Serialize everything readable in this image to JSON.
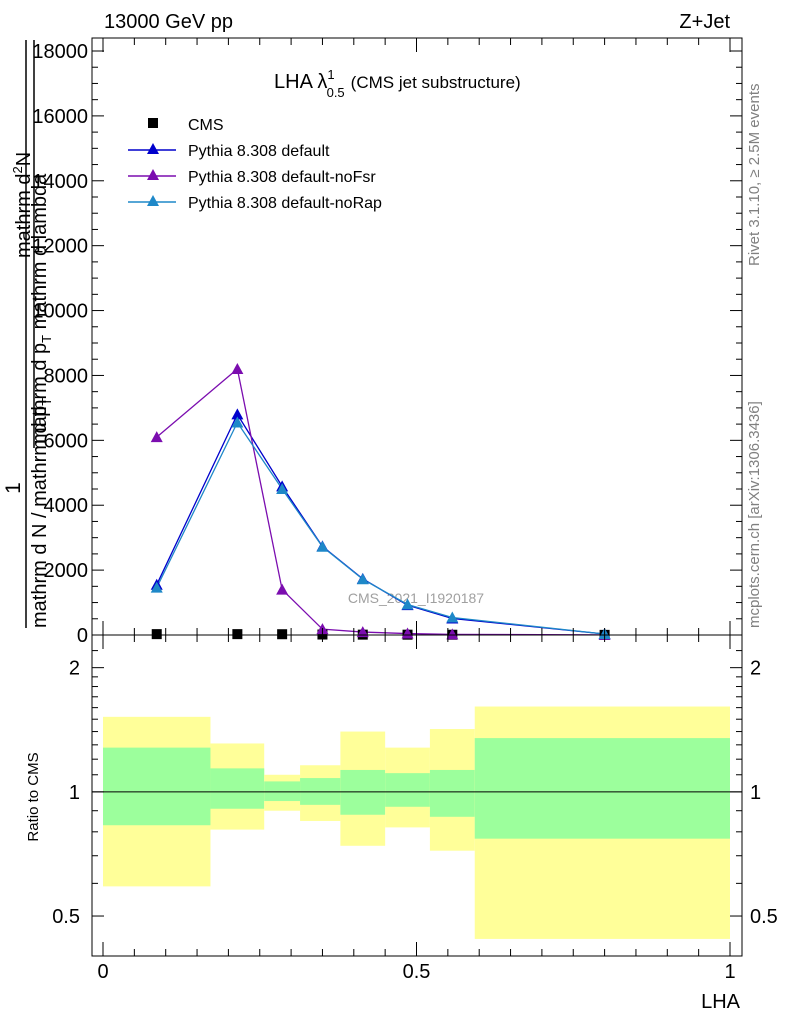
{
  "header": {
    "left": "13000 GeV pp",
    "right": "Z+Jet"
  },
  "side": {
    "rivet": "Rivet 3.1.10, ≥ 2.5M events",
    "mcplots": "mcplots.cern.ch [arXiv:1306.3436]"
  },
  "title": {
    "main": "LHA λ",
    "sup": "1",
    "sub": "0.5",
    "rest": "(CMS jet substructure)"
  },
  "watermark": "CMS_2021_I1920187",
  "ylabel_main": {
    "l1": "1",
    "l2": "mathrm d N / mathrm d p",
    "l2_sub": "T",
    "l3": "mathrm d",
    "l3_sup": "2",
    "l3_rest": "N",
    "l4": "mathrm d p",
    "l4_sub": "T",
    "l4_rest": " mathrm d lambda"
  },
  "ylabel_ratio": "Ratio to CMS",
  "xlabel": "LHA",
  "chart_data": [
    {
      "type": "line",
      "panel": "main",
      "x": [
        0.0857,
        0.2143,
        0.2857,
        0.35,
        0.4143,
        0.4857,
        0.5571,
        0.8
      ],
      "series": [
        {
          "name": "CMS",
          "marker": "square",
          "color": "#000000",
          "values": [
            27,
            27,
            24,
            15,
            11,
            10,
            8,
            4
          ]
        },
        {
          "name": "Pythia 8.308 default",
          "marker": "triangle",
          "color": "#0000cc",
          "values": [
            1550,
            6800,
            4580,
            2730,
            1730,
            920,
            510,
            30
          ]
        },
        {
          "name": "Pythia 8.308 default-noFsr",
          "marker": "triangle",
          "color": "#7b0daf",
          "values": [
            6100,
            8200,
            1400,
            180,
            90,
            45,
            20,
            5
          ]
        },
        {
          "name": "Pythia 8.308 default-noRap",
          "marker": "triangle",
          "color": "#1e88c8",
          "values": [
            1460,
            6550,
            4500,
            2720,
            1720,
            940,
            540,
            30
          ]
        }
      ],
      "xlim": [
        0,
        1
      ],
      "ylim": [
        0,
        18000
      ],
      "yticks": [
        "0",
        "2000",
        "4000",
        "6000",
        "8000",
        "10000",
        "12000",
        "14000",
        "16000",
        "18000"
      ],
      "legend": "top-left"
    },
    {
      "type": "area",
      "panel": "ratio",
      "bins": [
        [
          0.0,
          0.1714
        ],
        [
          0.1714,
          0.2571
        ],
        [
          0.2571,
          0.3143
        ],
        [
          0.3143,
          0.3786
        ],
        [
          0.3786,
          0.45
        ],
        [
          0.45,
          0.5214
        ],
        [
          0.5214,
          0.5929
        ],
        [
          0.5929,
          1.0
        ]
      ],
      "stat_band": [
        [
          0.83,
          1.28
        ],
        [
          0.91,
          1.14
        ],
        [
          0.95,
          1.06
        ],
        [
          0.93,
          1.08
        ],
        [
          0.88,
          1.13
        ],
        [
          0.92,
          1.11
        ],
        [
          0.87,
          1.13
        ],
        [
          0.77,
          1.35
        ]
      ],
      "total_band": [
        [
          0.59,
          1.52
        ],
        [
          0.81,
          1.31
        ],
        [
          0.9,
          1.1
        ],
        [
          0.85,
          1.16
        ],
        [
          0.74,
          1.4
        ],
        [
          0.82,
          1.28
        ],
        [
          0.72,
          1.42
        ],
        [
          0.44,
          1.61
        ]
      ],
      "reference": 1,
      "ylim": [
        0.4,
        2.4
      ],
      "ylog": true,
      "yticks": [
        "0.5",
        "1",
        "2"
      ],
      "xticks": [
        "0",
        "0.5",
        "1"
      ],
      "colors": {
        "stat": "#9cff9c",
        "total": "#ffff99"
      }
    }
  ]
}
